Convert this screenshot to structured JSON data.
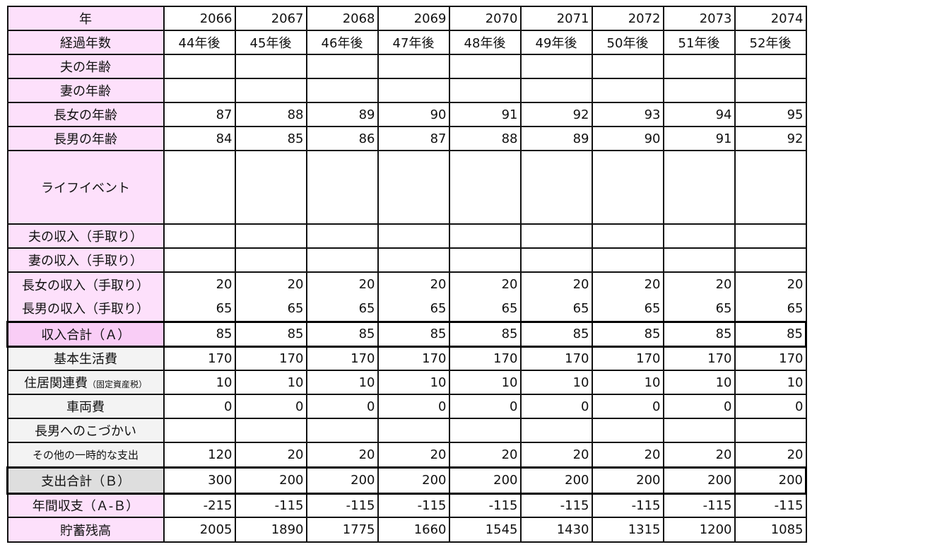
{
  "table": {
    "rows": [
      {
        "label": "年",
        "values": [
          "2066",
          "2067",
          "2068",
          "2069",
          "2070",
          "2071",
          "2072",
          "2073",
          "2074"
        ],
        "style": "header"
      },
      {
        "label": "経過年数",
        "values": [
          "44年後",
          "45年後",
          "46年後",
          "47年後",
          "48年後",
          "49年後",
          "50年後",
          "51年後",
          "52年後"
        ],
        "style": "center"
      },
      {
        "label": "夫の年齢",
        "values": [
          "",
          "",
          "",
          "",
          "",
          "",
          "",
          "",
          ""
        ]
      },
      {
        "label": "妻の年齢",
        "values": [
          "",
          "",
          "",
          "",
          "",
          "",
          "",
          "",
          ""
        ]
      },
      {
        "label": "長女の年齢",
        "values": [
          "87",
          "88",
          "89",
          "90",
          "91",
          "92",
          "93",
          "94",
          "95"
        ]
      },
      {
        "label": "長男の年齢",
        "values": [
          "84",
          "85",
          "86",
          "87",
          "88",
          "89",
          "90",
          "91",
          "92"
        ]
      },
      {
        "label": "ライフイベント",
        "values": [
          "",
          "",
          "",
          "",
          "",
          "",
          "",
          "",
          ""
        ],
        "style": "tall"
      },
      {
        "label": "夫の収入（手取り）",
        "values": [
          "",
          "",
          "",
          "",
          "",
          "",
          "",
          "",
          ""
        ]
      },
      {
        "label": "妻の収入（手取り）",
        "values": [
          "",
          "",
          "",
          "",
          "",
          "",
          "",
          "",
          ""
        ]
      },
      {
        "label": "長女の収入（手取り）",
        "values": [
          "20",
          "20",
          "20",
          "20",
          "20",
          "20",
          "20",
          "20",
          "20"
        ],
        "style": "nobottom"
      },
      {
        "label": "長男の収入（手取り）",
        "values": [
          "65",
          "65",
          "65",
          "65",
          "65",
          "65",
          "65",
          "65",
          "65"
        ],
        "style": "notop"
      },
      {
        "label": "収入合計（Ａ）",
        "values": [
          "85",
          "85",
          "85",
          "85",
          "85",
          "85",
          "85",
          "85",
          "85"
        ],
        "style": "total"
      },
      {
        "label": "基本生活費",
        "values": [
          "170",
          "170",
          "170",
          "170",
          "170",
          "170",
          "170",
          "170",
          "170"
        ],
        "style": "exp"
      },
      {
        "label": "住居関連費",
        "note": "（固定資産税）",
        "values": [
          "10",
          "10",
          "10",
          "10",
          "10",
          "10",
          "10",
          "10",
          "10"
        ],
        "style": "exp"
      },
      {
        "label": "車両費",
        "values": [
          "0",
          "0",
          "0",
          "0",
          "0",
          "0",
          "0",
          "0",
          "0"
        ],
        "style": "exp"
      },
      {
        "label": "長男へのこづかい",
        "values": [
          "",
          "",
          "",
          "",
          "",
          "",
          "",
          "",
          ""
        ],
        "style": "exp"
      },
      {
        "label": "その他の一時的な支出",
        "values": [
          "120",
          "20",
          "20",
          "20",
          "20",
          "20",
          "20",
          "20",
          "20"
        ],
        "style": "exp-small"
      },
      {
        "label": "支出合計（Ｂ）",
        "values": [
          "300",
          "200",
          "200",
          "200",
          "200",
          "200",
          "200",
          "200",
          "200"
        ],
        "style": "exptotal"
      },
      {
        "label": "年間収支（Ａ-Ｂ）",
        "values": [
          "-215",
          "-115",
          "-115",
          "-115",
          "-115",
          "-115",
          "-115",
          "-115",
          "-115"
        ]
      },
      {
        "label": "貯蓄残高",
        "values": [
          "2005",
          "1890",
          "1775",
          "1660",
          "1545",
          "1430",
          "1315",
          "1200",
          "1085"
        ]
      }
    ]
  },
  "colors": {
    "label_pink": "#fde0fb",
    "total_pink": "#f9cdf6",
    "expense_gray": "#f3f3f3",
    "expense_total_gray": "#dedede"
  }
}
